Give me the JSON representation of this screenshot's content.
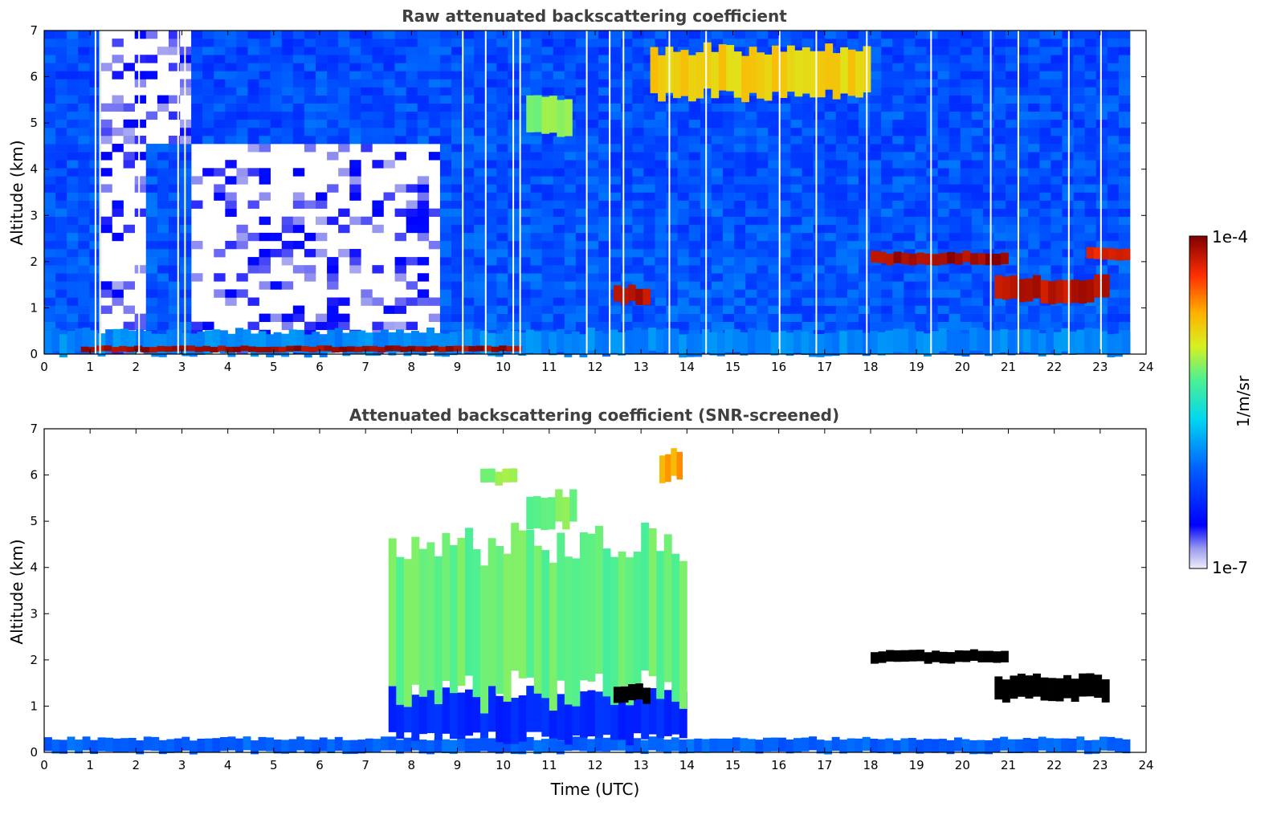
{
  "chart_data": [
    {
      "type": "heatmap",
      "title": "Raw attenuated backscattering coefficient",
      "xlabel": "",
      "ylabel": "Altitude (km)",
      "xlim": [
        0,
        24
      ],
      "ylim": [
        0,
        7
      ],
      "xticks": [
        "0",
        "1",
        "2",
        "3",
        "4",
        "5",
        "6",
        "7",
        "8",
        "9",
        "10",
        "11",
        "12",
        "13",
        "14",
        "15",
        "16",
        "17",
        "18",
        "19",
        "20",
        "21",
        "22",
        "23",
        "24"
      ],
      "yticks": [
        "0",
        "1",
        "2",
        "3",
        "4",
        "5",
        "6",
        "7"
      ],
      "data_end_hour": 23.65,
      "features": [
        {
          "name": "surface layer",
          "t0": 0,
          "t1": 23.65,
          "alt0": 0,
          "alt1": 0.5,
          "level": 0.35
        },
        {
          "name": "near-surface aerosol",
          "t0": 0.8,
          "t1": 10.4,
          "alt0": 0.05,
          "alt1": 0.17,
          "level": 0.97
        },
        {
          "name": "cloud layer 18-21 UTC",
          "t0": 18.0,
          "t1": 21.0,
          "alt0": 1.95,
          "alt1": 2.2,
          "level": 0.97
        },
        {
          "name": "cloud 21-23 UTC",
          "t0": 20.7,
          "t1": 23.2,
          "alt0": 1.15,
          "alt1": 1.65,
          "level": 0.95
        },
        {
          "name": "cloud 12.5-13 UTC",
          "t0": 12.4,
          "t1": 13.2,
          "alt0": 1.1,
          "alt1": 1.45,
          "level": 0.95
        },
        {
          "name": "cloud 23 UTC",
          "t0": 22.7,
          "t1": 23.65,
          "alt0": 2.05,
          "alt1": 2.3,
          "level": 0.9
        },
        {
          "name": "upper cloud streaks",
          "t0": 13.2,
          "t1": 18.0,
          "alt0": 5.6,
          "alt1": 6.6,
          "level": 0.72
        },
        {
          "name": "mid-level cloud",
          "t0": 10.5,
          "t1": 11.5,
          "alt0": 4.8,
          "alt1": 5.6,
          "level": 0.6
        }
      ]
    },
    {
      "type": "heatmap",
      "title": "Attenuated backscattering coefficient (SNR-screened)",
      "xlabel": "Time (UTC)",
      "ylabel": "Altitude (km)",
      "xlim": [
        0,
        24
      ],
      "ylim": [
        0,
        7
      ],
      "xticks": [
        "0",
        "1",
        "2",
        "3",
        "4",
        "5",
        "6",
        "7",
        "8",
        "9",
        "10",
        "11",
        "12",
        "13",
        "14",
        "15",
        "16",
        "17",
        "18",
        "19",
        "20",
        "21",
        "22",
        "23",
        "24"
      ],
      "yticks": [
        "0",
        "1",
        "2",
        "3",
        "4",
        "5",
        "6",
        "7"
      ],
      "data_end_hour": 23.65,
      "features": [
        {
          "name": "surface layer",
          "t0": 0,
          "t1": 23.65,
          "alt0": 0,
          "alt1": 0.3,
          "level": 0.3
        },
        {
          "name": "boundary layer 8-14 UTC",
          "t0": 7.5,
          "t1": 14.0,
          "alt0": 0.3,
          "alt1": 1.3,
          "level": 0.2
        },
        {
          "name": "aerosol 8-14 UTC",
          "t0": 7.5,
          "t1": 14.0,
          "alt0": 1.3,
          "alt1": 4.5,
          "level": 0.58
        },
        {
          "name": "cloud layer 18-21 UTC",
          "t0": 18.0,
          "t1": 21.0,
          "alt0": 1.95,
          "alt1": 2.2,
          "level": 1.0
        },
        {
          "name": "cloud 21-23 UTC",
          "t0": 20.7,
          "t1": 23.2,
          "alt0": 1.15,
          "alt1": 1.65,
          "level": 1.0
        },
        {
          "name": "cloud 12.5-13 UTC",
          "t0": 12.4,
          "t1": 13.2,
          "alt0": 1.1,
          "alt1": 1.45,
          "level": 1.0
        },
        {
          "name": "upper cloud 9.5 UTC",
          "t0": 9.5,
          "t1": 10.3,
          "alt0": 5.8,
          "alt1": 6.1,
          "level": 0.62
        },
        {
          "name": "upper cloud 11 UTC",
          "t0": 10.5,
          "t1": 11.6,
          "alt0": 4.9,
          "alt1": 5.6,
          "level": 0.6
        },
        {
          "name": "upper cloud 13.5 UTC",
          "t0": 13.4,
          "t1": 13.9,
          "alt0": 5.9,
          "alt1": 6.5,
          "level": 0.78
        }
      ]
    }
  ],
  "colorbar": {
    "label": "1/m/sr",
    "min_label": "1e-7",
    "max_label": "1e-4"
  }
}
